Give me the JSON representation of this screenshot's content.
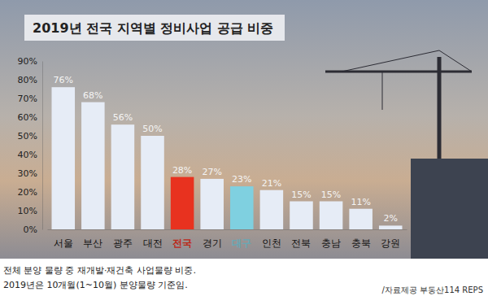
{
  "chart_data": {
    "type": "bar",
    "title": "2019년 전국 지역별 정비사업 공급 비중",
    "categories": [
      "서울",
      "부산",
      "광주",
      "대전",
      "전국",
      "경기",
      "대구",
      "인천",
      "전북",
      "충남",
      "충북",
      "강원"
    ],
    "values": [
      76,
      68,
      56,
      50,
      28,
      27,
      23,
      21,
      15,
      15,
      11,
      2
    ],
    "value_labels": [
      "76%",
      "68%",
      "56%",
      "50%",
      "28%",
      "27%",
      "23%",
      "21%",
      "15%",
      "15%",
      "11%",
      "2%"
    ],
    "colors": [
      "#e6ecf6",
      "#e6ecf6",
      "#e6ecf6",
      "#e6ecf6",
      "#e8321f",
      "#e6ecf6",
      "#7fd0e0",
      "#e6ecf6",
      "#e6ecf6",
      "#e6ecf6",
      "#e6ecf6",
      "#e6ecf6"
    ],
    "ylim": [
      0,
      90
    ],
    "yticks": [
      {
        "value": 0,
        "label": "0%"
      },
      {
        "value": 10,
        "label": "10%"
      },
      {
        "value": 20,
        "label": "20%"
      },
      {
        "value": 30,
        "label": "30%"
      },
      {
        "value": 40,
        "label": "40%"
      },
      {
        "value": 50,
        "label": "50%"
      },
      {
        "value": 60,
        "label": "60%"
      },
      {
        "value": 70,
        "label": "70%"
      },
      {
        "value": 80,
        "label": "80%"
      },
      {
        "value": 90,
        "label": "90%"
      }
    ],
    "grid": false,
    "data_labels": true,
    "annotations": [
      "전체 분양 물량 중 재개발·재건축 사업물량 비중.",
      "2019년은 10개월(1~10월) 분양물량 기준임."
    ],
    "source": "/자료제공 부동산114 REPS"
  }
}
